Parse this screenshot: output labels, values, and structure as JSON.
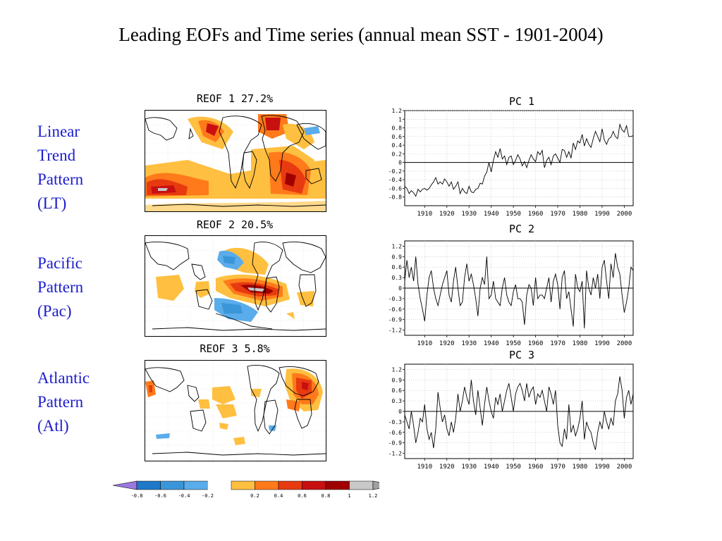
{
  "title": "Leading EOFs and Time series (annual mean SST - 1901-2004)",
  "rows": [
    {
      "label_lines": [
        "Linear",
        "Trend",
        "Pattern",
        "(LT)"
      ],
      "map_title": "REOF 1  27.2%",
      "pc_title": "PC 1"
    },
    {
      "label_lines": [
        "Pacific",
        "Pattern",
        "(Pac)"
      ],
      "map_title": "REOF 2  20.5%",
      "pc_title": "PC 2"
    },
    {
      "label_lines": [
        "Atlantic",
        "Pattern",
        "(Atl)"
      ],
      "map_title": "REOF 3   5.8%",
      "pc_title": "PC 3"
    }
  ],
  "colorbar": {
    "labels": [
      "-0.8",
      "-0.6",
      "-0.4",
      "-0.2",
      "0.2",
      "0.4",
      "0.6",
      "0.8",
      "1",
      "1.2"
    ],
    "colors": [
      "#9a78e0",
      "#1f78c8",
      "#3a96d8",
      "#5aacea",
      "#ffffff",
      "#ffbf40",
      "#ff7a1a",
      "#e83a10",
      "#c81010",
      "#a00000",
      "#c8c8c8",
      "#a0a0a0"
    ]
  },
  "chart_data": [
    {
      "type": "line",
      "title": "PC 1",
      "x": [
        1901,
        1902,
        1903,
        1904,
        1905,
        1906,
        1907,
        1908,
        1909,
        1910,
        1911,
        1912,
        1913,
        1914,
        1915,
        1916,
        1917,
        1918,
        1919,
        1920,
        1921,
        1922,
        1923,
        1924,
        1925,
        1926,
        1927,
        1928,
        1929,
        1930,
        1931,
        1932,
        1933,
        1934,
        1935,
        1936,
        1937,
        1938,
        1939,
        1940,
        1941,
        1942,
        1943,
        1944,
        1945,
        1946,
        1947,
        1948,
        1949,
        1950,
        1951,
        1952,
        1953,
        1954,
        1955,
        1956,
        1957,
        1958,
        1959,
        1960,
        1961,
        1962,
        1963,
        1964,
        1965,
        1966,
        1967,
        1968,
        1969,
        1970,
        1971,
        1972,
        1973,
        1974,
        1975,
        1976,
        1977,
        1978,
        1979,
        1980,
        1981,
        1982,
        1983,
        1984,
        1985,
        1986,
        1987,
        1988,
        1989,
        1990,
        1991,
        1992,
        1993,
        1994,
        1995,
        1996,
        1997,
        1998,
        1999,
        2000,
        2001,
        2002,
        2003,
        2004
      ],
      "y": [
        -0.55,
        -0.6,
        -0.72,
        -0.65,
        -0.7,
        -0.78,
        -0.62,
        -0.68,
        -0.62,
        -0.6,
        -0.64,
        -0.6,
        -0.52,
        -0.45,
        -0.35,
        -0.5,
        -0.45,
        -0.5,
        -0.38,
        -0.45,
        -0.55,
        -0.45,
        -0.62,
        -0.55,
        -0.45,
        -0.72,
        -0.6,
        -0.68,
        -0.72,
        -0.55,
        -0.68,
        -0.7,
        -0.62,
        -0.6,
        -0.48,
        -0.5,
        -0.32,
        -0.22,
        0.0,
        -0.22,
        0.05,
        0.25,
        0.12,
        0.32,
        0.08,
        0.15,
        -0.05,
        0.12,
        0.15,
        -0.05,
        0.05,
        0.18,
        0.08,
        -0.08,
        0.02,
        -0.12,
        0.05,
        0.18,
        0.08,
        0.02,
        0.25,
        0.18,
        0.28,
        -0.12,
        0.05,
        0.12,
        -0.05,
        0.15,
        0.2,
        0.1,
        0.0,
        0.3,
        0.28,
        0.12,
        0.25,
        0.1,
        0.45,
        0.3,
        0.5,
        0.45,
        0.65,
        0.38,
        0.55,
        0.42,
        0.35,
        0.55,
        0.72,
        0.6,
        0.48,
        0.78,
        0.52,
        0.42,
        0.55,
        0.58,
        0.72,
        0.6,
        0.55,
        0.88,
        0.75,
        0.7,
        0.85,
        0.6,
        0.6,
        0.62
      ],
      "xlim": [
        1901,
        2004
      ],
      "ylim": [
        -1.0,
        1.2
      ],
      "axis": "y=0",
      "xticks": [
        1910,
        1920,
        1930,
        1940,
        1950,
        1960,
        1970,
        1980,
        1990,
        2000
      ],
      "yticks": [
        1.2,
        1,
        0.8,
        0.6,
        0.4,
        0.2,
        0,
        -0.2,
        -0.4,
        -0.6,
        -0.8
      ],
      "ytick_labels": [
        "1.2",
        "1",
        "0.8",
        "0.6",
        "0.4",
        "0.2",
        "0",
        "-0.2",
        "-0.4",
        "-0.6",
        "-0.8"
      ]
    },
    {
      "type": "line",
      "title": "PC 2",
      "x": [
        1901,
        1902,
        1903,
        1904,
        1905,
        1906,
        1907,
        1908,
        1909,
        1910,
        1911,
        1912,
        1913,
        1914,
        1915,
        1916,
        1917,
        1918,
        1919,
        1920,
        1921,
        1922,
        1923,
        1924,
        1925,
        1926,
        1927,
        1928,
        1929,
        1930,
        1931,
        1932,
        1933,
        1934,
        1935,
        1936,
        1937,
        1938,
        1939,
        1940,
        1941,
        1942,
        1943,
        1944,
        1945,
        1946,
        1947,
        1948,
        1949,
        1950,
        1951,
        1952,
        1953,
        1954,
        1955,
        1956,
        1957,
        1958,
        1959,
        1960,
        1961,
        1962,
        1963,
        1964,
        1965,
        1966,
        1967,
        1968,
        1969,
        1970,
        1971,
        1972,
        1973,
        1974,
        1975,
        1976,
        1977,
        1978,
        1979,
        1980,
        1981,
        1982,
        1983,
        1984,
        1985,
        1986,
        1987,
        1988,
        1989,
        1990,
        1991,
        1992,
        1993,
        1994,
        1995,
        1996,
        1997,
        1998,
        1999,
        2000,
        2001,
        2002,
        2003,
        2004
      ],
      "y": [
        0.2,
        0.8,
        0.3,
        0.6,
        0.2,
        0.9,
        0.1,
        -0.3,
        -0.6,
        -0.95,
        -0.2,
        0.3,
        0.5,
        0.0,
        -0.3,
        -0.5,
        -0.2,
        0.1,
        0.3,
        0.5,
        -0.2,
        -0.4,
        0.2,
        0.6,
        0.0,
        -0.5,
        -0.4,
        0.3,
        0.7,
        0.2,
        0.4,
        0.1,
        -0.3,
        -0.8,
        0.0,
        0.3,
        0.1,
        0.9,
        -0.3,
        -0.2,
        0.2,
        -0.3,
        -0.4,
        -0.5,
        0.0,
        0.3,
        -0.2,
        -0.4,
        -0.5,
        -0.1,
        0.1,
        -0.3,
        -0.3,
        -0.4,
        -1.05,
        -0.2,
        0.1,
        0.0,
        -0.5,
        0.3,
        -0.3,
        -0.2,
        -0.2,
        -0.3,
        0.0,
        0.3,
        -0.4,
        0.2,
        0.4,
        0.1,
        -0.6,
        0.3,
        0.5,
        -0.3,
        -0.1,
        -0.6,
        -1.1,
        0.4,
        0.0,
        -0.1,
        0.2,
        -1.15,
        0.5,
        0.0,
        -0.2,
        0.3,
        0.0,
        0.4,
        -0.3,
        0.6,
        0.8,
        0.2,
        -0.3,
        0.7,
        0.3,
        1.0,
        0.6,
        0.4,
        -0.2,
        -0.7,
        -0.4,
        0.0,
        0.6,
        0.5
      ],
      "xlim": [
        1901,
        2004
      ],
      "ylim": [
        -1.35,
        1.35
      ],
      "axis": "y=0",
      "xticks": [
        1910,
        1920,
        1930,
        1940,
        1950,
        1960,
        1970,
        1980,
        1990,
        2000
      ],
      "yticks": [
        1.2,
        0.9,
        0.6,
        0.3,
        0,
        -0.3,
        -0.6,
        -0.9,
        -1.2
      ],
      "ytick_labels": [
        "1.2",
        "0.9",
        "0.6",
        "0.3",
        "0",
        "-0.3",
        "-0.6",
        "-0.9",
        "-1.2"
      ]
    },
    {
      "type": "line",
      "title": "PC 3",
      "x": [
        1901,
        1902,
        1903,
        1904,
        1905,
        1906,
        1907,
        1908,
        1909,
        1910,
        1911,
        1912,
        1913,
        1914,
        1915,
        1916,
        1917,
        1918,
        1919,
        1920,
        1921,
        1922,
        1923,
        1924,
        1925,
        1926,
        1927,
        1928,
        1929,
        1930,
        1931,
        1932,
        1933,
        1934,
        1935,
        1936,
        1937,
        1938,
        1939,
        1940,
        1941,
        1942,
        1943,
        1944,
        1945,
        1946,
        1947,
        1948,
        1949,
        1950,
        1951,
        1952,
        1953,
        1954,
        1955,
        1956,
        1957,
        1958,
        1959,
        1960,
        1961,
        1962,
        1963,
        1964,
        1965,
        1966,
        1967,
        1968,
        1969,
        1970,
        1971,
        1972,
        1973,
        1974,
        1975,
        1976,
        1977,
        1978,
        1979,
        1980,
        1981,
        1982,
        1983,
        1984,
        1985,
        1986,
        1987,
        1988,
        1989,
        1990,
        1991,
        1992,
        1993,
        1994,
        1995,
        1996,
        1997,
        1998,
        1999,
        2000,
        2001,
        2002,
        2003,
        2004
      ],
      "y": [
        -0.1,
        -0.3,
        -0.5,
        0.0,
        -0.4,
        -0.9,
        -0.6,
        -0.2,
        -0.3,
        0.2,
        -0.5,
        -0.8,
        -0.6,
        -1.05,
        -0.5,
        0.55,
        0.1,
        -0.3,
        -0.1,
        -0.5,
        -0.7,
        -0.3,
        -0.6,
        -0.2,
        0.5,
        0.0,
        0.3,
        0.7,
        0.4,
        0.2,
        0.9,
        0.3,
        -0.1,
        0.6,
        0.1,
        -0.4,
        0.2,
        0.7,
        0.3,
        0.0,
        -0.2,
        0.4,
        0.2,
        0.5,
        0.0,
        0.3,
        0.6,
        0.8,
        0.4,
        0.0,
        0.5,
        0.7,
        0.8,
        0.6,
        0.3,
        0.8,
        0.4,
        0.6,
        0.7,
        0.2,
        0.5,
        0.4,
        0.6,
        0.3,
        0.0,
        0.7,
        0.5,
        0.2,
        0.6,
        -0.4,
        -0.9,
        -1.0,
        -0.5,
        -0.8,
        0.2,
        -0.6,
        -0.4,
        -0.7,
        -0.5,
        -0.2,
        0.3,
        -0.8,
        -0.3,
        -0.5,
        -0.6,
        -0.9,
        -1.1,
        -0.6,
        -0.3,
        -0.5,
        0.0,
        -0.3,
        -0.5,
        -0.2,
        -0.4,
        0.3,
        0.5,
        1.0,
        0.6,
        -0.2,
        0.4,
        0.6,
        0.2,
        0.5
      ],
      "xlim": [
        1901,
        2004
      ],
      "ylim": [
        -1.35,
        1.35
      ],
      "axis": "y=0",
      "xticks": [
        1910,
        1920,
        1930,
        1940,
        1950,
        1960,
        1970,
        1980,
        1990,
        2000
      ],
      "yticks": [
        1.2,
        0.9,
        0.6,
        0.3,
        0,
        -0.3,
        -0.6,
        -0.9,
        -1.2
      ],
      "ytick_labels": [
        "1.2",
        "0.9",
        "0.6",
        "0.3",
        "0",
        "-0.3",
        "-0.6",
        "-0.9",
        "-1.2"
      ]
    }
  ]
}
